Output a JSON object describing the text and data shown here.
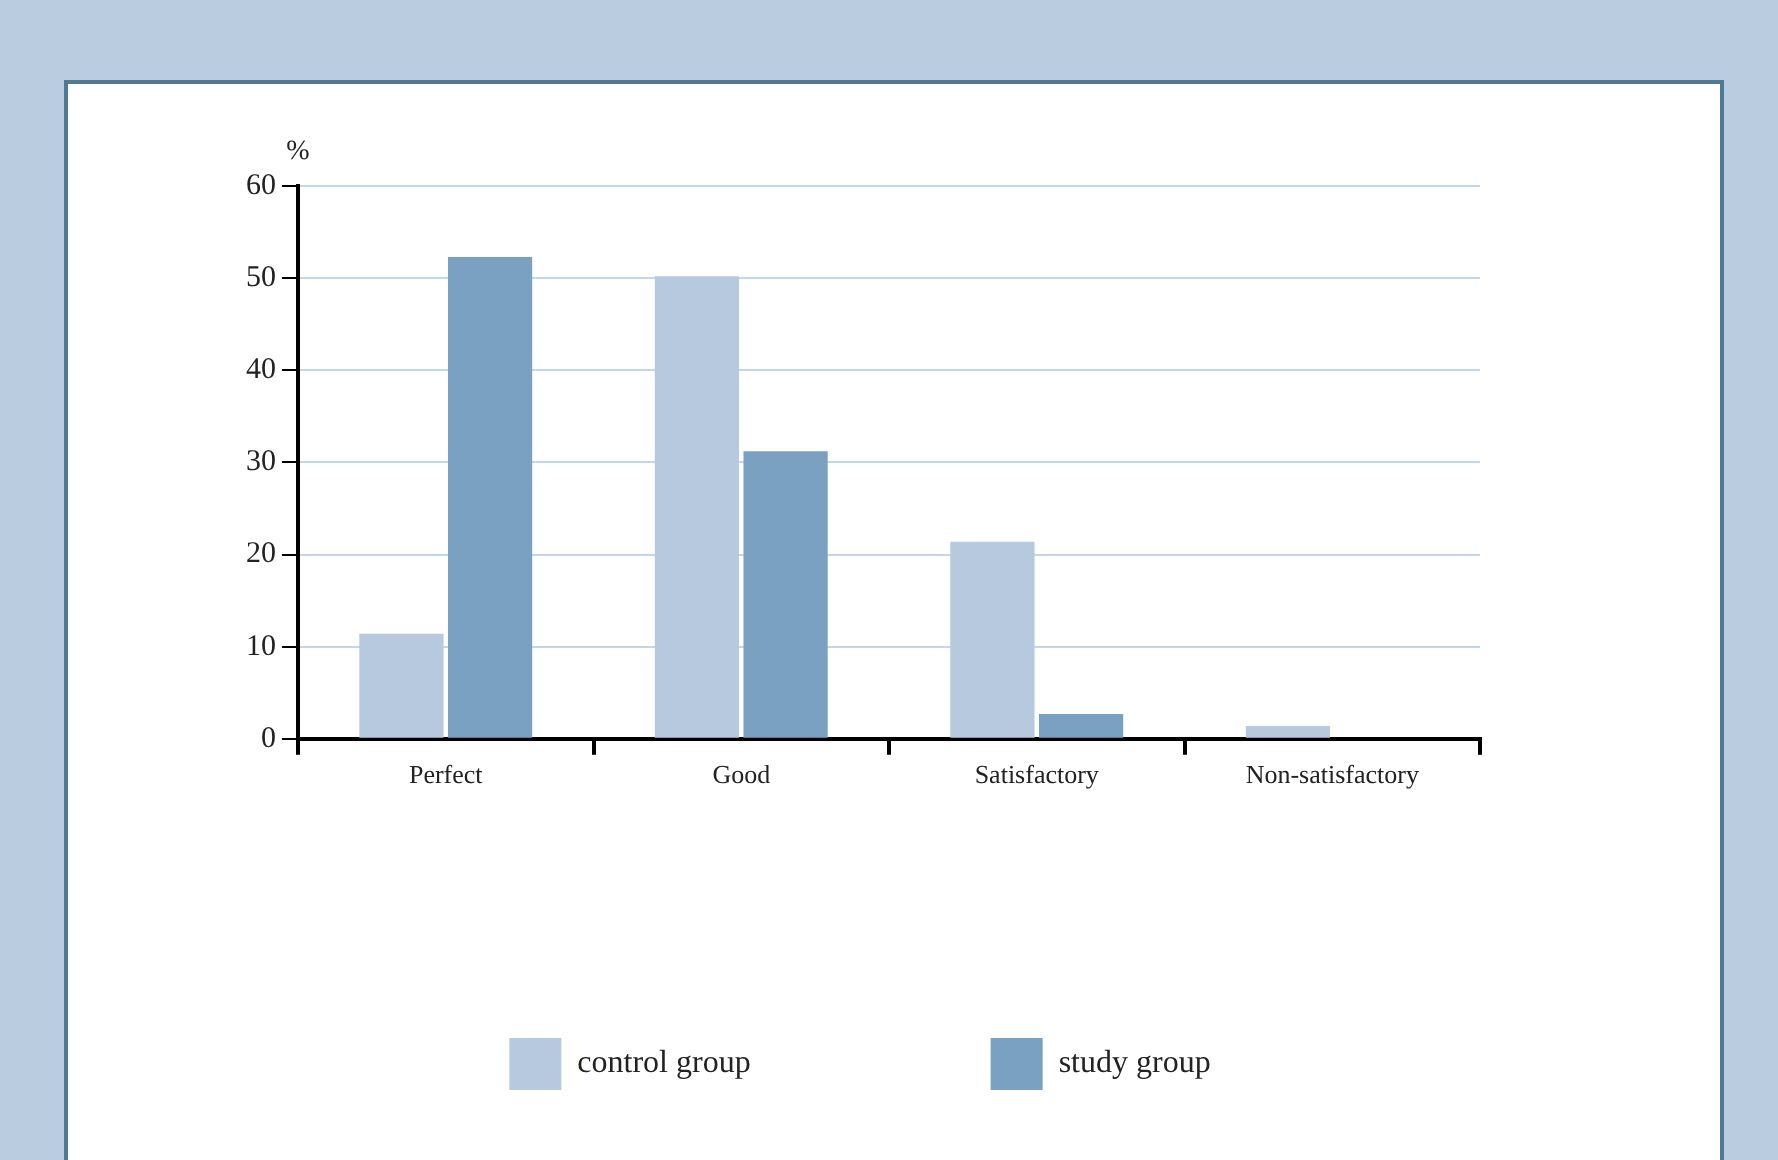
{
  "chart_data": {
    "type": "bar",
    "ylabel": "%",
    "categories": [
      "Perfect",
      "Good",
      "Satisfactory",
      "Non-satisfactory"
    ],
    "series": [
      {
        "name": "control group",
        "color": "#b7c9de",
        "values": [
          11.4,
          50.2,
          21.4,
          1.4
        ]
      },
      {
        "name": "study group",
        "color": "#7aa1c2",
        "values": [
          52.3,
          31.2,
          2.7,
          null
        ]
      }
    ],
    "ylim": [
      0,
      60
    ],
    "yticks": [
      0,
      10,
      20,
      30,
      40,
      50,
      60
    ],
    "grid": "y",
    "legend": "bottom"
  }
}
